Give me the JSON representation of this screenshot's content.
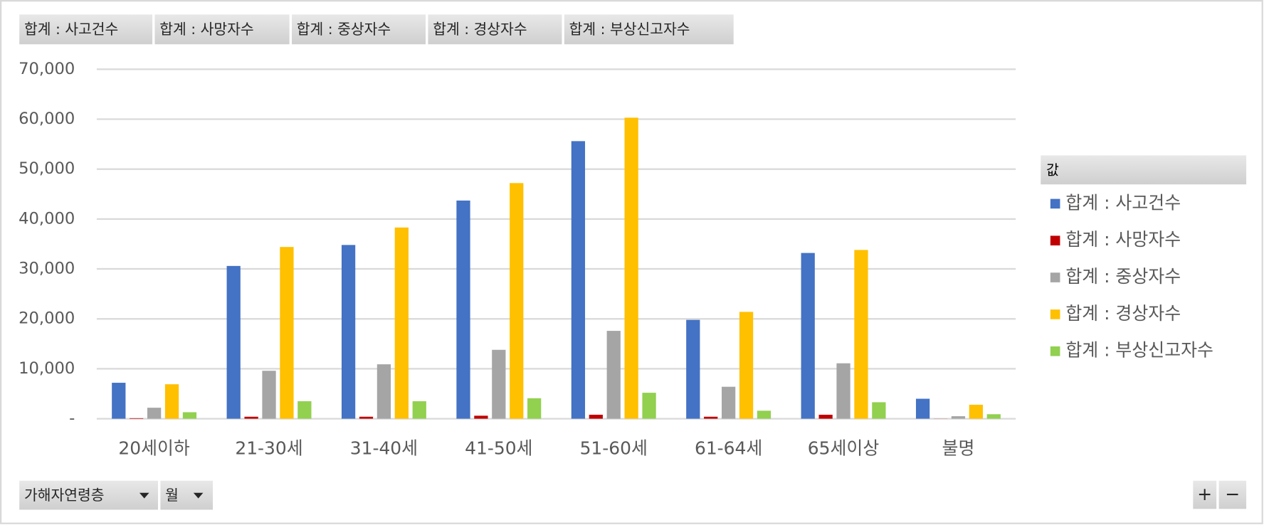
{
  "chart_data": {
    "type": "bar",
    "categories": [
      "20세이하",
      "21-30세",
      "31-40세",
      "41-50세",
      "51-60세",
      "61-64세",
      "65세이상",
      "불명"
    ],
    "series": [
      {
        "name": "합계 : 사고건수",
        "color": "#4472c4",
        "values": [
          7200,
          30600,
          34800,
          43700,
          55600,
          19800,
          33200,
          4000
        ]
      },
      {
        "name": "합계 : 사망자수",
        "color": "#c00000",
        "values": [
          100,
          400,
          400,
          600,
          800,
          400,
          800,
          20
        ]
      },
      {
        "name": "합계 : 중상자수",
        "color": "#a5a5a5",
        "values": [
          2200,
          9600,
          10900,
          13800,
          17600,
          6400,
          11100,
          500
        ]
      },
      {
        "name": "합계 : 경상자수",
        "color": "#ffc000",
        "values": [
          6900,
          34400,
          38300,
          47200,
          60300,
          21400,
          33800,
          2800
        ]
      },
      {
        "name": "합계 : 부상신고자수",
        "color": "#92d050",
        "values": [
          1300,
          3500,
          3500,
          4100,
          5200,
          1600,
          3300,
          900
        ]
      }
    ],
    "ylim": [
      0,
      70000
    ],
    "yticks": [
      {
        "value": 0,
        "label": "-"
      },
      {
        "value": 10000,
        "label": "10,000"
      },
      {
        "value": 20000,
        "label": "20,000"
      },
      {
        "value": 30000,
        "label": "30,000"
      },
      {
        "value": 40000,
        "label": "40,000"
      },
      {
        "value": 50000,
        "label": "50,000"
      },
      {
        "value": 60000,
        "label": "60,000"
      },
      {
        "value": 70000,
        "label": "70,000"
      }
    ],
    "grid": true,
    "legend_title": "값",
    "legend_position": "right"
  },
  "axis_fields": [
    "가해자연령층",
    "월"
  ],
  "zoom_buttons": [
    "+",
    "−"
  ]
}
